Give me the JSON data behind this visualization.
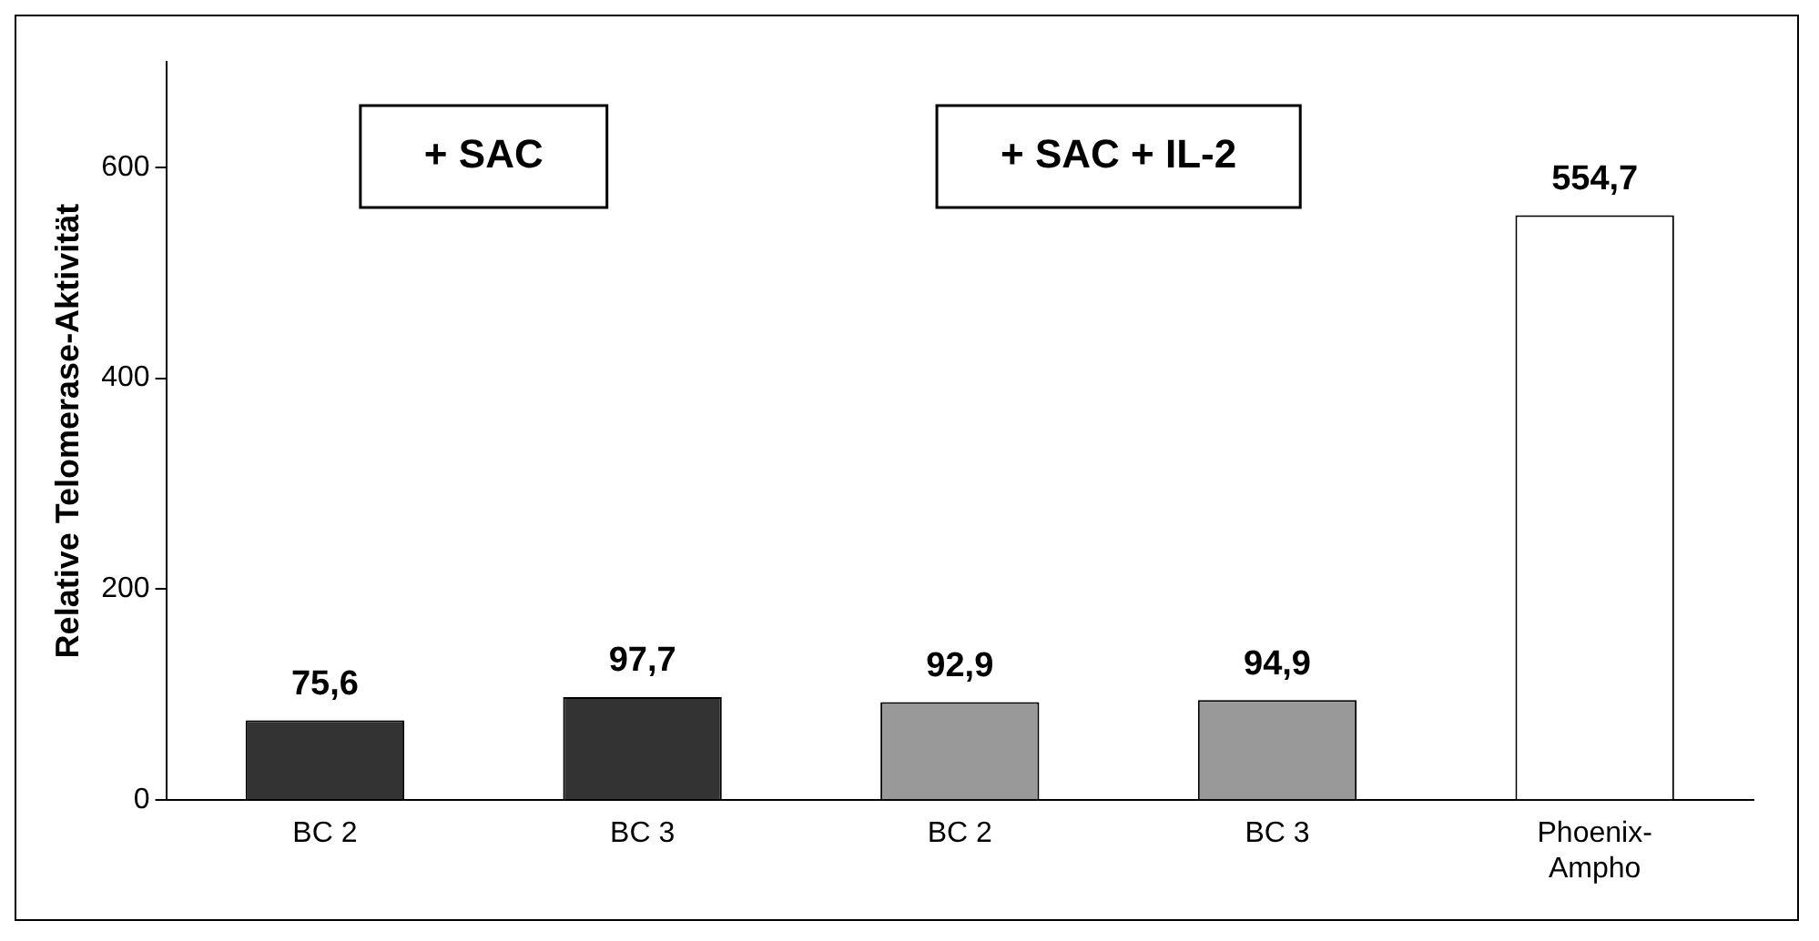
{
  "chart_data": {
    "type": "bar",
    "ylabel": "Relative Telomerase-Aktivität",
    "categories": [
      "BC 2",
      "BC 3",
      "BC 2",
      "BC 3",
      "Phoenix-Ampho"
    ],
    "values": [
      75.6,
      97.7,
      92.9,
      94.9,
      554.7
    ],
    "colors": [
      "#333333",
      "#333333",
      "#999999",
      "#999999",
      "#ffffff"
    ],
    "value_labels": [
      "75,6",
      "97,7",
      "92,9",
      "94,9",
      "554,7"
    ],
    "ylim": [
      0,
      700
    ],
    "yticks": [
      0,
      200,
      400,
      600
    ],
    "grid": false,
    "legend": false,
    "annotations": [
      "+ SAC",
      "+ SAC + IL-2"
    ]
  }
}
